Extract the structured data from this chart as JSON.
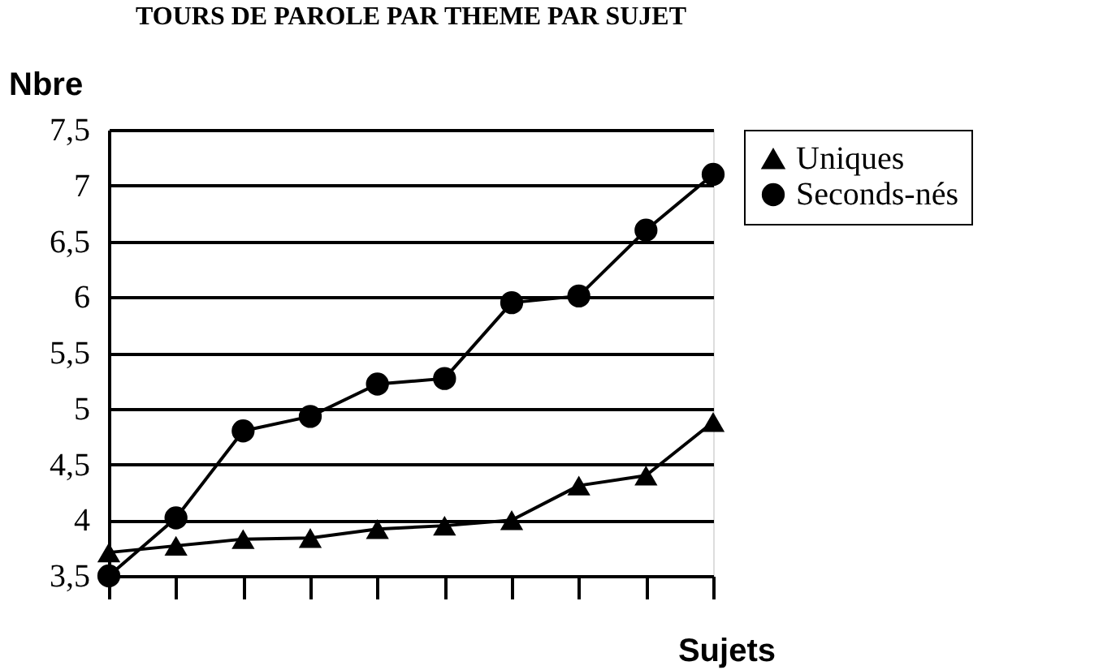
{
  "chart_data": {
    "type": "line",
    "title": "TOURS DE PAROLE PAR THEME PAR SUJET",
    "ylabel": "Nbre",
    "xlabel": "Sujets",
    "categories": [
      null,
      null,
      null,
      null,
      null,
      null,
      null,
      null,
      null,
      null
    ],
    "series": [
      {
        "name": "Uniques",
        "color": "#000000",
        "marker": "triangle",
        "values": [
          3.71,
          3.77,
          3.83,
          3.84,
          3.92,
          3.95,
          4.0,
          4.31,
          4.4,
          4.88
        ]
      },
      {
        "name": "Seconds-nés",
        "color": "#000000",
        "marker": "circle",
        "values": [
          3.5,
          4.02,
          4.8,
          4.93,
          5.22,
          5.27,
          5.95,
          6.01,
          6.6,
          7.1
        ]
      }
    ],
    "ylim": [
      3.5,
      7.5
    ],
    "yticks": [
      {
        "value": 3.5,
        "label": "3,5"
      },
      4,
      {
        "value": 4.5,
        "label": "4,5"
      },
      5,
      {
        "value": 5.5,
        "label": "5,5"
      },
      6,
      {
        "value": 6.5,
        "label": "6,5"
      },
      7,
      {
        "value": 7.5,
        "label": "7,5"
      }
    ],
    "grid": "y",
    "legend": "right",
    "line_style": "solid"
  }
}
